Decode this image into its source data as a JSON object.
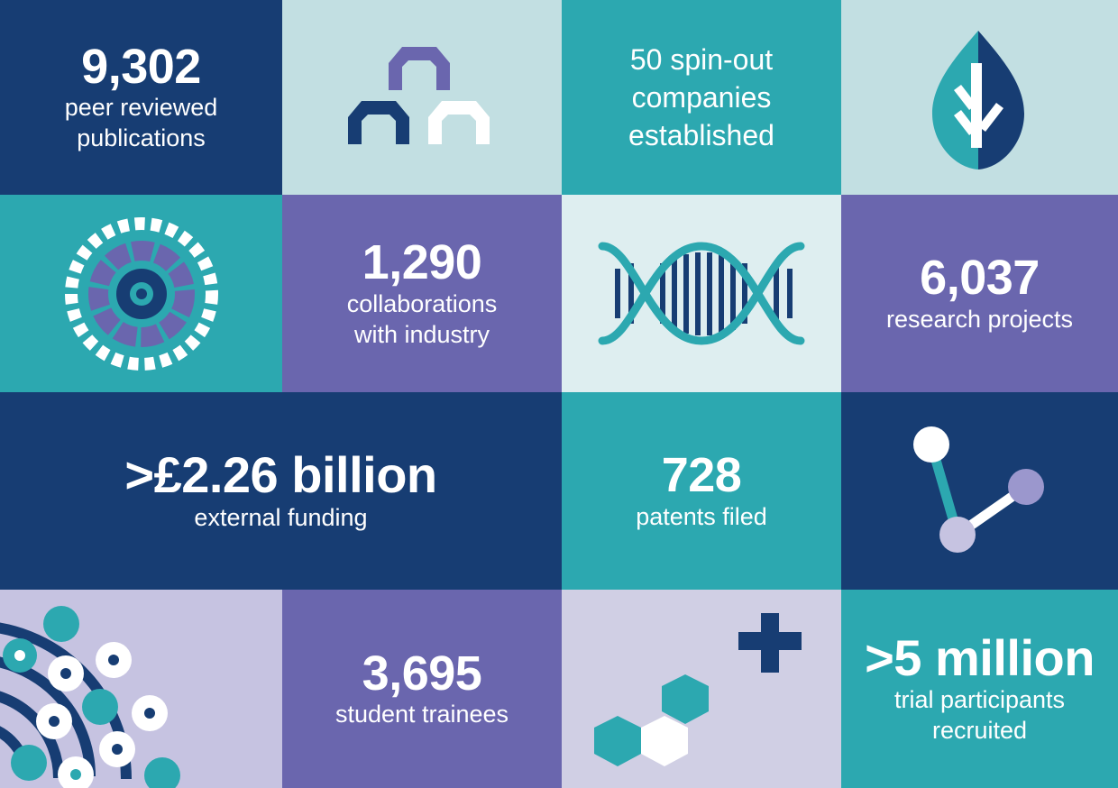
{
  "colors": {
    "navy": "#173d73",
    "teal": "#2ca8b0",
    "light_blue": "#c2dfe2",
    "pale_blue": "#deeef0",
    "purple": "#6a66ae",
    "lavender": "#c6c3e1",
    "pale_lavender": "#d0cfe4",
    "light_purple": "#9b97cd",
    "white": "#ffffff"
  },
  "stats": {
    "publications": {
      "number": "9,302",
      "label_line1": "peer reviewed",
      "label_line2": "publications"
    },
    "spinouts": {
      "line1": "50 spin-out",
      "line2": "companies",
      "line3": "established"
    },
    "collaborations": {
      "number": "1,290",
      "label_line1": "collaborations",
      "label_line2": "with industry"
    },
    "projects": {
      "number": "6,037",
      "label_line1": "research projects"
    },
    "funding": {
      "number": ">£2.26 billion",
      "label_line1": "external funding"
    },
    "patents": {
      "number": "728",
      "label_line1": "patents filed"
    },
    "trainees": {
      "number": "3,695",
      "label_line1": "student trainees"
    },
    "participants": {
      "number": ">5 million",
      "label_line1": "trial participants",
      "label_line2": "recruited"
    }
  },
  "icons": {
    "arches": "arches-icon",
    "leaf": "leaf-icon",
    "target": "target-icon",
    "dna": "dna-icon",
    "molecule": "molecule-icon",
    "dots": "dot-arcs-icon",
    "hexagons": "hexagons-plus-icon"
  }
}
